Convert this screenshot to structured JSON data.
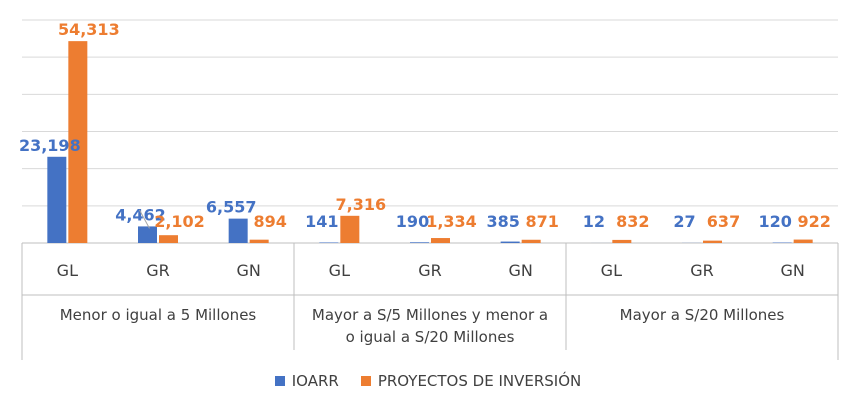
{
  "chart_data": {
    "type": "bar",
    "groups": [
      {
        "label": "Menor  o igual a 5 Millones",
        "categories": [
          "GL",
          "GR",
          "GN"
        ]
      },
      {
        "label": "Mayor a S/5 Millones y menor a o igual a S/20 Millones",
        "categories": [
          "GL",
          "GR",
          "GN"
        ]
      },
      {
        "label": "Mayor a S/20 Millones",
        "categories": [
          "GL",
          "GR",
          "GN"
        ]
      }
    ],
    "series": [
      {
        "name": "IOARR",
        "color": "#4472C4",
        "values": [
          23198,
          4462,
          6557,
          141,
          190,
          385,
          12,
          27,
          120
        ],
        "labels": [
          "23,198",
          "4,462",
          "6,557",
          "141",
          "190",
          "385",
          "12",
          "27",
          "120"
        ]
      },
      {
        "name": "PROYECTOS DE INVERSIÓN",
        "color": "#ED7D31",
        "values": [
          54313,
          2102,
          894,
          7316,
          1334,
          871,
          832,
          637,
          922
        ],
        "labels": [
          "54,313",
          "2,102",
          "894",
          "7,316",
          "1,334",
          "871",
          "832",
          "637",
          "922"
        ]
      }
    ],
    "ylim": [
      0,
      60000
    ],
    "grid": true,
    "legend_position": "bottom"
  }
}
